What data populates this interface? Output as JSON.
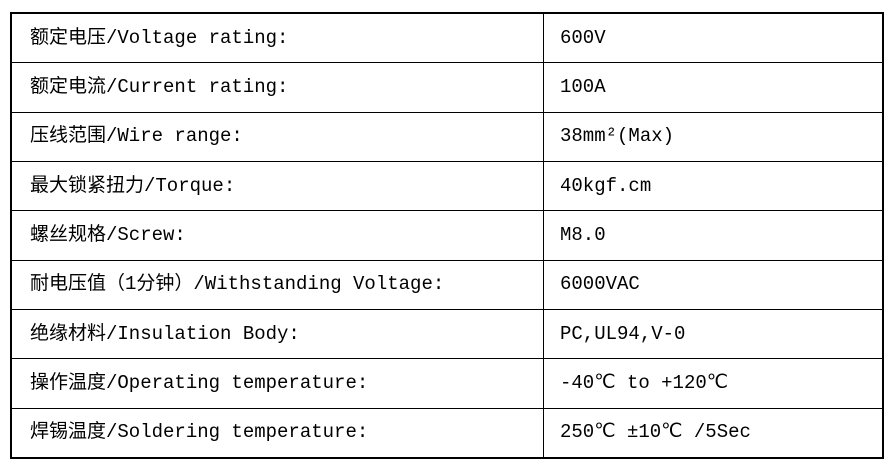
{
  "colors": {
    "border": "#000000",
    "text": "#000000",
    "background": "#ffffff"
  },
  "table": {
    "rows": [
      {
        "label": "额定电压/Voltage rating:",
        "value": "600V"
      },
      {
        "label": "额定电流/Current rating:",
        "value": "100A"
      },
      {
        "label": "压线范围/Wire range:",
        "value": "38mm²(Max)"
      },
      {
        "label": "最大锁紧扭力/Torque:",
        "value": "40kgf.cm"
      },
      {
        "label": "螺丝规格/Screw:",
        "value": "M8.0"
      },
      {
        "label": "耐电压值（1分钟）/Withstanding Voltage:",
        "value": "6000VAC"
      },
      {
        "label": "绝缘材料/Insulation Body:",
        "value": "PC,UL94,V-0"
      },
      {
        "label": "操作温度/Operating temperature:",
        "value": "-40℃ to +120℃"
      },
      {
        "label": "焊锡温度/Soldering temperature:",
        "value": "250℃ ±10℃ /5Sec"
      }
    ]
  }
}
